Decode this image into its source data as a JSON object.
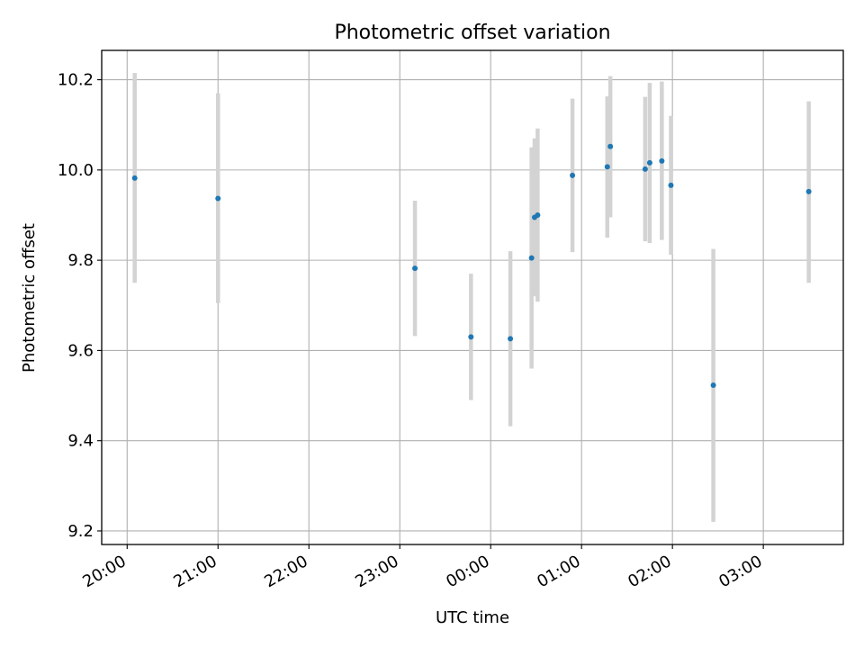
{
  "chart_data": {
    "type": "scatter",
    "title": "Photometric offset variation",
    "xlabel": "UTC time",
    "ylabel": "Photometric offset",
    "x_ticks": [
      "20:00",
      "21:00",
      "22:00",
      "23:00",
      "00:00",
      "01:00",
      "02:00",
      "03:00"
    ],
    "y_ticks": [
      "9.2",
      "9.4",
      "9.6",
      "9.8",
      "10.0",
      "10.2"
    ],
    "xlim_hours_from_20utc": [
      -0.28,
      7.88
    ],
    "ylim": [
      9.17,
      10.265
    ],
    "grid": true,
    "series": [
      {
        "marker_color": "#1f77b4",
        "errorbar_color": "#d3d3d3",
        "points": [
          {
            "t": "20:05",
            "y": 9.982,
            "lo": 9.75,
            "hi": 10.215
          },
          {
            "t": "21:00",
            "y": 9.937,
            "lo": 9.705,
            "hi": 10.17
          },
          {
            "t": "23:10",
            "y": 9.782,
            "lo": 9.632,
            "hi": 9.932
          },
          {
            "t": "23:47",
            "y": 9.63,
            "lo": 9.49,
            "hi": 9.77
          },
          {
            "t": "00:13",
            "y": 9.626,
            "lo": 9.432,
            "hi": 9.82
          },
          {
            "t": "00:27",
            "y": 9.805,
            "lo": 9.56,
            "hi": 10.05
          },
          {
            "t": "00:29",
            "y": 9.895,
            "lo": 9.72,
            "hi": 10.07
          },
          {
            "t": "00:31",
            "y": 9.9,
            "lo": 9.708,
            "hi": 10.092
          },
          {
            "t": "00:54",
            "y": 9.988,
            "lo": 9.818,
            "hi": 10.158
          },
          {
            "t": "01:17",
            "y": 10.007,
            "lo": 9.85,
            "hi": 10.163
          },
          {
            "t": "01:19",
            "y": 10.052,
            "lo": 9.895,
            "hi": 10.208
          },
          {
            "t": "01:42",
            "y": 10.002,
            "lo": 9.842,
            "hi": 10.162
          },
          {
            "t": "01:45",
            "y": 10.016,
            "lo": 9.838,
            "hi": 10.193
          },
          {
            "t": "01:53",
            "y": 10.02,
            "lo": 9.845,
            "hi": 10.196
          },
          {
            "t": "01:59",
            "y": 9.966,
            "lo": 9.812,
            "hi": 10.12
          },
          {
            "t": "02:27",
            "y": 9.523,
            "lo": 9.22,
            "hi": 9.825
          },
          {
            "t": "03:30",
            "y": 9.952,
            "lo": 9.75,
            "hi": 10.152
          }
        ]
      }
    ]
  }
}
